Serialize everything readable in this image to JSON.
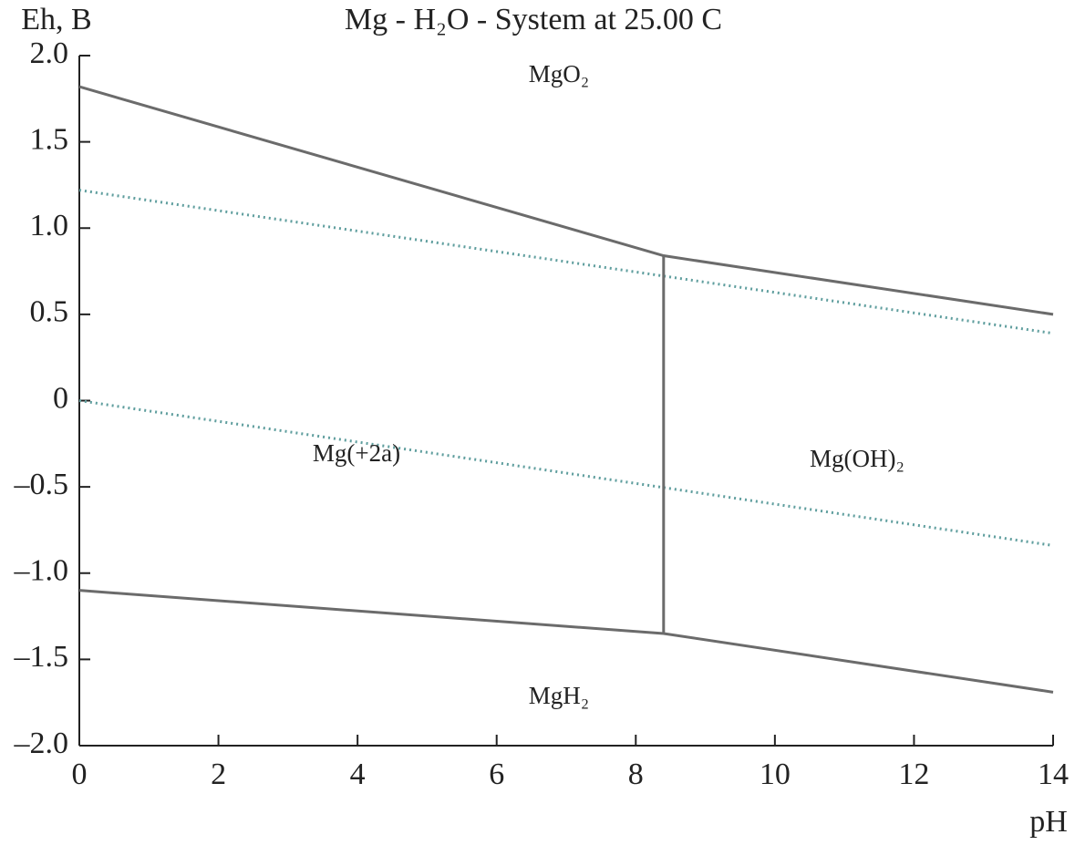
{
  "chart_data": {
    "type": "line",
    "title": "Mg - H₂O - System at 25.00 C",
    "y_label": "Eh, B",
    "x_label": "pH",
    "xlim": [
      0,
      14
    ],
    "xticks": [
      0,
      2,
      4,
      6,
      8,
      10,
      12,
      14
    ],
    "ylim": [
      -2,
      2
    ],
    "yticks": [
      {
        "value": 2,
        "label": "2.0"
      },
      {
        "value": 1.5,
        "label": "1.5"
      },
      {
        "value": 1,
        "label": "1.0"
      },
      {
        "value": 0.5,
        "label": "0.5"
      },
      0,
      {
        "value": -0.5,
        "label": "–0.5"
      },
      {
        "value": -1,
        "label": "–1.0"
      },
      {
        "value": -1.5,
        "label": "–1.5"
      },
      {
        "value": -2,
        "label": "–2.0"
      }
    ],
    "series": [
      {
        "color": "#6b6b6b",
        "style": "solid",
        "x": [
          0,
          8.4,
          14
        ],
        "values": [
          1.82,
          0.84,
          0.5
        ]
      },
      {
        "color": "#5f9e9e",
        "style": "dotted",
        "x": [
          0,
          14
        ],
        "values": [
          1.22,
          0.39
        ]
      },
      {
        "color": "#5f9e9e",
        "style": "dotted",
        "x": [
          0,
          14
        ],
        "values": [
          0,
          -0.84
        ]
      },
      {
        "color": "#6b6b6b",
        "style": "solid",
        "x": [
          0,
          8.4,
          14
        ],
        "values": [
          -1.1,
          -1.35,
          -1.69
        ]
      },
      {
        "color": "#6b6b6b",
        "style": "solid",
        "x": [
          8.4,
          8.4
        ],
        "values": [
          0.84,
          -1.35
        ]
      }
    ],
    "annotations": [
      "MgO₂",
      "Mg(+2a)",
      "Mg(OH)₂",
      "MgH₂"
    ]
  }
}
